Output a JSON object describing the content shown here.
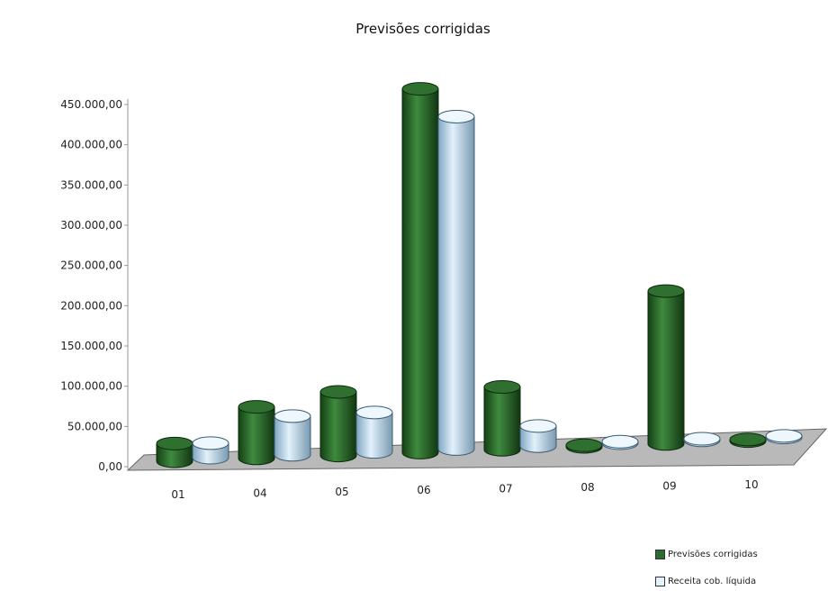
{
  "chart_data": {
    "type": "bar",
    "title": "Previsões corrigidas",
    "xlabel": "",
    "ylabel": "",
    "categories": [
      "01",
      "04",
      "05",
      "06",
      "07",
      "08",
      "09",
      "10"
    ],
    "ylim": [
      0,
      450000
    ],
    "y_ticks": [
      "0,00",
      "50.000,00",
      "100.000,00",
      "150.000,00",
      "200.000,00",
      "250.000,00",
      "300.000,00",
      "350.000,00",
      "400.000,00",
      "450.000,00"
    ],
    "series": [
      {
        "name": "Previsões corrigidas",
        "color": "#2e6b2e",
        "values": [
          22000,
          64000,
          79000,
          452000,
          78000,
          2000,
          190000,
          2000
        ]
      },
      {
        "name": "Receita cob. líquida",
        "color": "#bcdaf0",
        "values": [
          18000,
          48000,
          49000,
          413000,
          25000,
          2000,
          2000,
          2000
        ]
      }
    ],
    "legend_position": "bottom-right",
    "grid": false,
    "style": "3d-cylinder"
  }
}
